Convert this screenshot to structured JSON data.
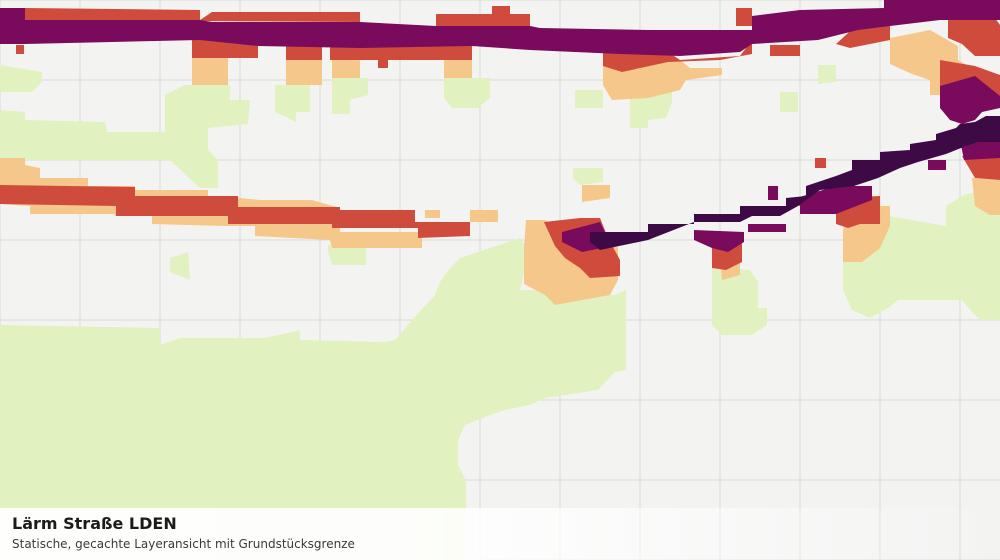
{
  "map": {
    "title": "Lärm Straße LDEN",
    "subtitle": "Statische, gecachte Layeransicht mit Grundstücksgrenze",
    "colors": {
      "background": "#f3f4f2",
      "grid": "#d9dad6",
      "band_light": "#e2f1c0",
      "band_orange": "#f6c78a",
      "band_red": "#cf4c3c",
      "band_purple": "#7a0b5c",
      "band_dark": "#3e0a46"
    }
  }
}
